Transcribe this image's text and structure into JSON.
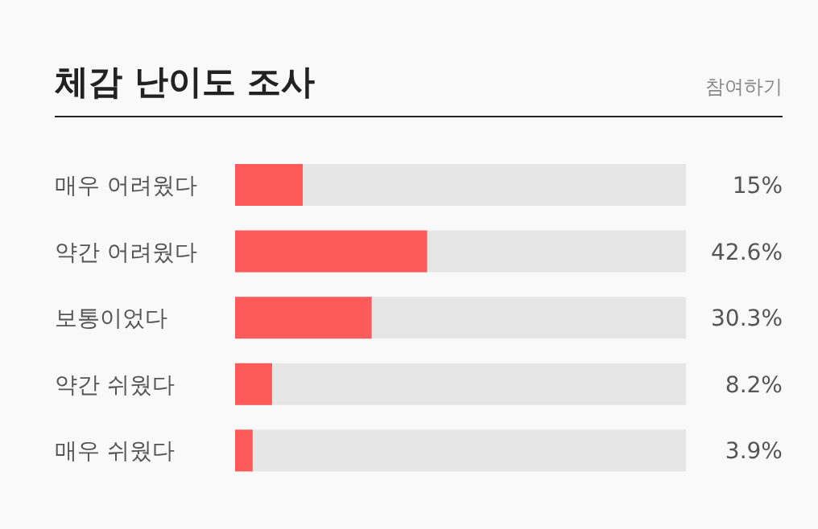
{
  "chart_data": {
    "type": "bar",
    "orientation": "horizontal",
    "title": "체감 난이도 조사",
    "annotations": [
      "참여하기"
    ],
    "categories": [
      "매우 어려웠다",
      "약간 어려웠다",
      "보통이었다",
      "약간 쉬웠다",
      "매우 쉬웠다"
    ],
    "values": [
      15,
      42.6,
      30.3,
      8.2,
      3.9
    ],
    "value_labels": [
      "15%",
      "42.6%",
      "30.3%",
      "8.2%",
      "3.9%"
    ],
    "color": "#ff5a5a",
    "xlim": [
      0,
      100
    ],
    "tick_labels": "y"
  }
}
